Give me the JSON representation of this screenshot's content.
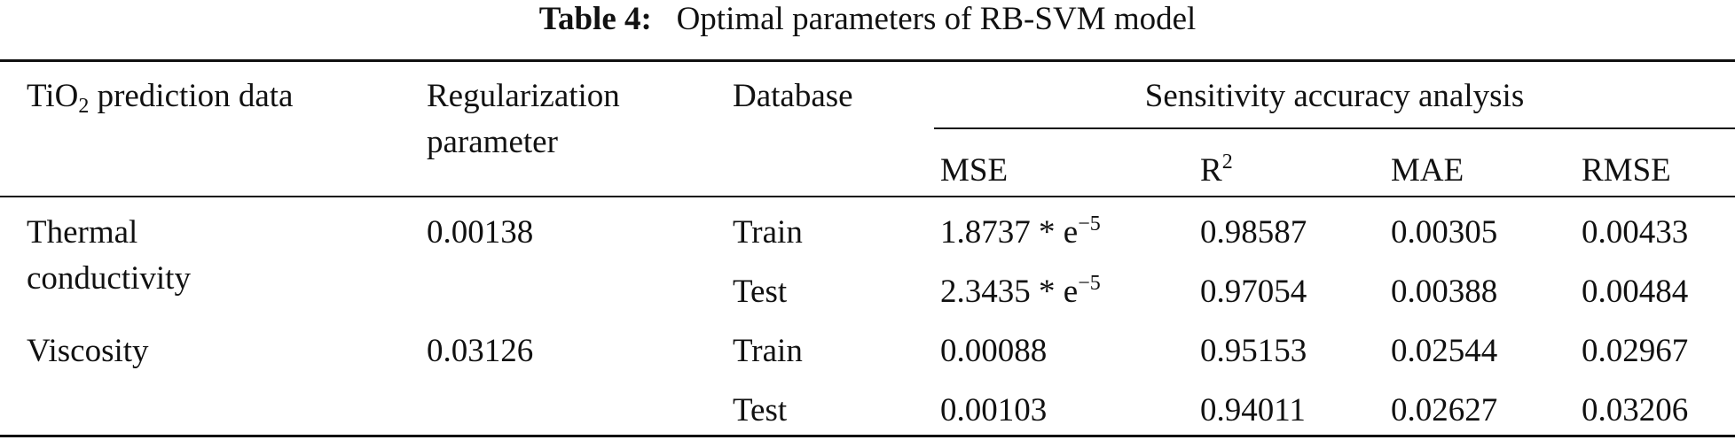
{
  "caption": {
    "label": "Table 4:",
    "text": "Optimal parameters of RB-SVM model"
  },
  "header": {
    "col1_pre": "TiO",
    "col1_sub": "2",
    "col1_post": " prediction data",
    "col2_line1": "Regularization",
    "col2_line2": "parameter",
    "col3": "Database",
    "group": "Sensitivity accuracy analysis",
    "mse": "MSE",
    "r2_base": "R",
    "r2_sup": "2",
    "mae": "MAE",
    "rmse": "RMSE"
  },
  "rows": [
    {
      "property_line1": "Thermal",
      "property_line2": "conductivity",
      "regularization": "0.00138",
      "database": "Train",
      "mse_base": "1.8737 * e",
      "mse_sup": "−5",
      "r2": "0.98587",
      "mae": "0.00305",
      "rmse": "0.00433"
    },
    {
      "database": "Test",
      "mse_base": "2.3435 * e",
      "mse_sup": "−5",
      "r2": "0.97054",
      "mae": "0.00388",
      "rmse": "0.00484"
    },
    {
      "property_line1": "Viscosity",
      "regularization": "0.03126",
      "database": "Train",
      "mse": "0.00088",
      "r2": "0.95153",
      "mae": "0.02544",
      "rmse": "0.02967"
    },
    {
      "database": "Test",
      "mse": "0.00103",
      "r2": "0.94011",
      "mae": "0.02627",
      "rmse": "0.03206"
    }
  ]
}
